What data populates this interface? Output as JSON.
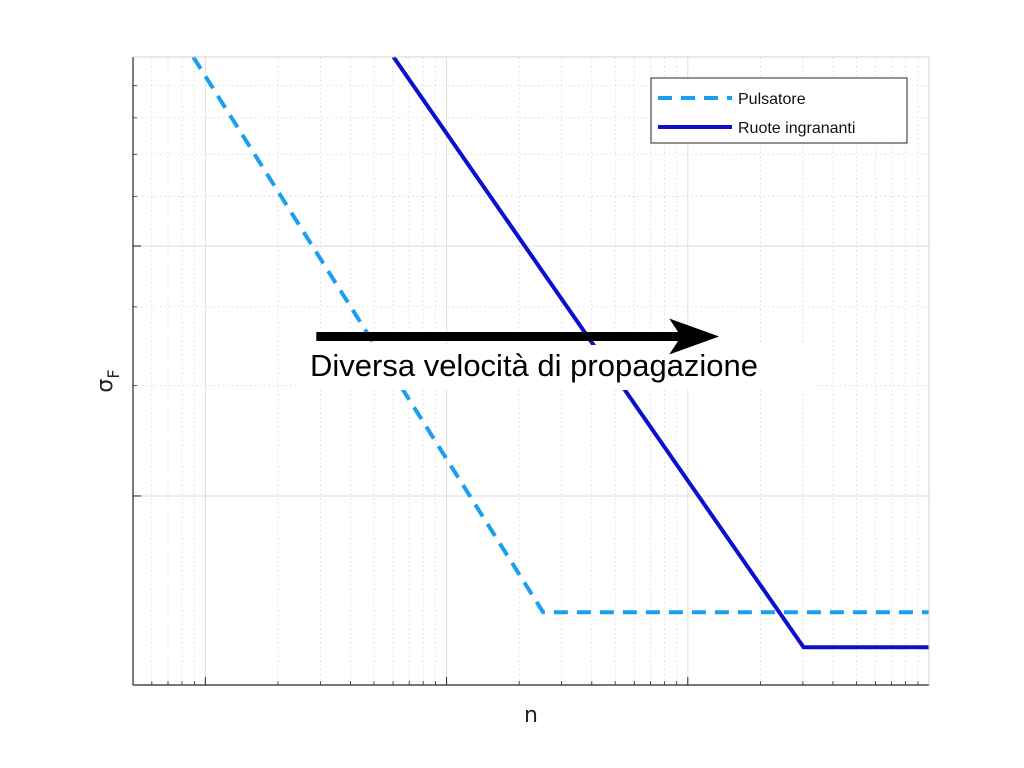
{
  "chart_data": {
    "type": "line",
    "title": "",
    "xlabel": "n",
    "ylabel_symbol": "σ",
    "ylabel_subscript": "F",
    "xscale": "log",
    "yscale": "log",
    "grid": "on",
    "minor_grid": "on",
    "tick_labels_shown": false,
    "legend_position": "top-right",
    "xlim_decades": [
      -0.3,
      3.0
    ],
    "ylim_decades": [
      0.0,
      1.0
    ],
    "series": [
      {
        "name": "Pulsatore",
        "style": "dashed",
        "color": "#1a9ff0",
        "x_decades": [
          -0.05,
          1.4,
          3.0
        ],
        "y_decades": [
          1.0,
          0.116,
          0.116
        ]
      },
      {
        "name": "Ruote ingrananti",
        "style": "solid",
        "color": "#0a10cc",
        "x_decades": [
          0.78,
          2.48,
          3.0
        ],
        "y_decades": [
          1.0,
          0.06,
          0.06
        ]
      }
    ],
    "annotations": [
      {
        "text": "Diversa velocità di propagazione",
        "arrow_from_decades": [
          0.46,
          0.555
        ],
        "arrow_to_decades": [
          2.13,
          0.555
        ],
        "arrow_color": "#000000"
      }
    ]
  }
}
